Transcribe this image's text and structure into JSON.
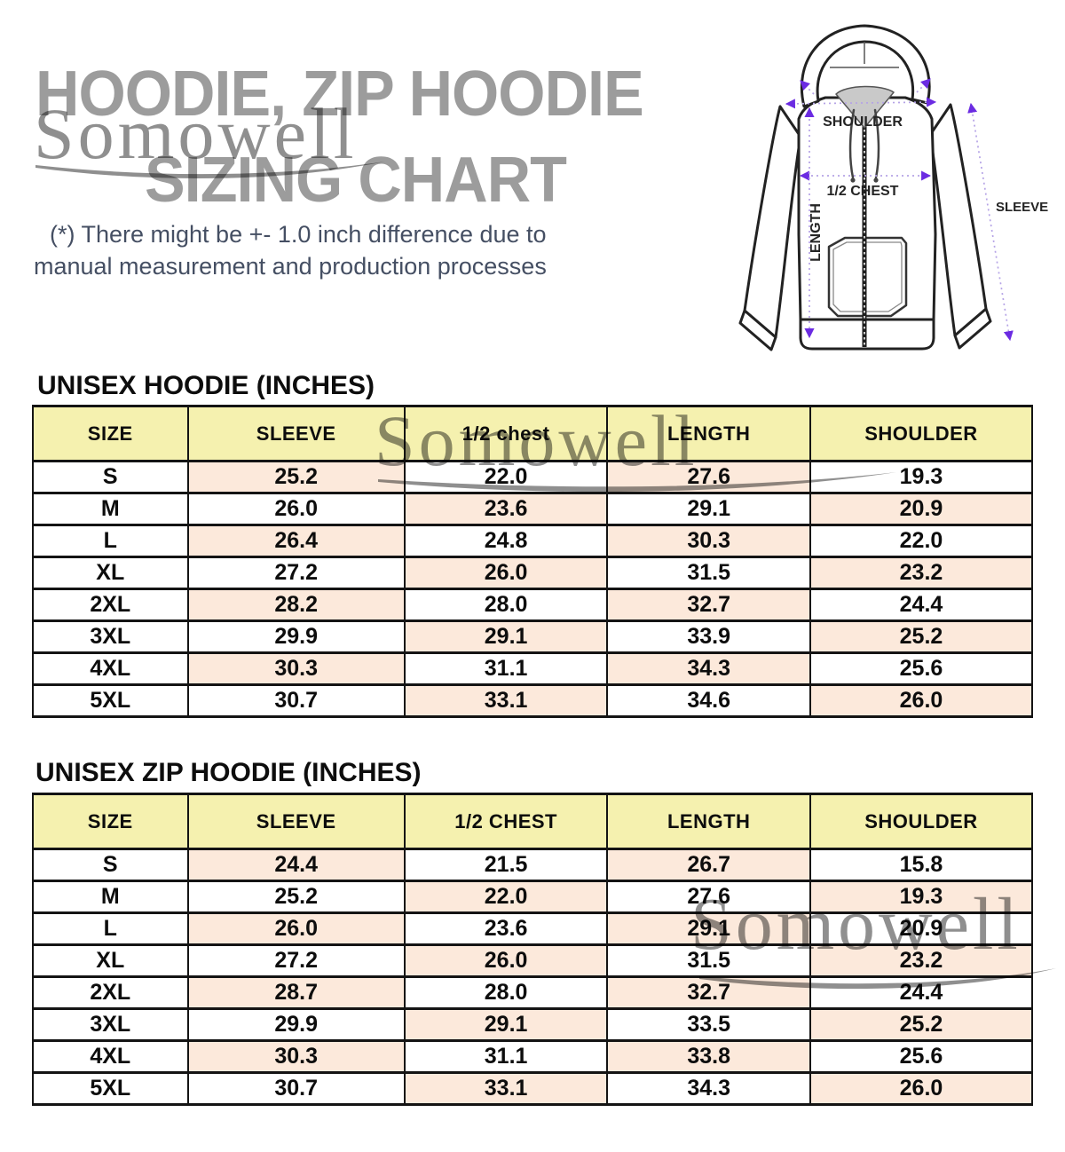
{
  "page": {
    "title_line1": "HOODIE, ZIP HOODIE",
    "title_line2": "SIZING CHART",
    "watermark_text": "Somowell",
    "disclaimer_line1": "(*) There might be +- 1.0 inch difference due to",
    "disclaimer_line2": "manual measurement and production processes"
  },
  "diagram": {
    "labels": {
      "shoulder": "SHOULDER",
      "half_chest": "1/2 CHEST",
      "length": "LENGTH",
      "sleeve": "SLEEVE"
    }
  },
  "colors": {
    "title_gray": "#9c9c9c",
    "watermark_gray": "#8f8f8f",
    "disclaimer_navy": "#454f63",
    "header_yellow": "#f5f1af",
    "cell_peach": "#fce9db",
    "border_black": "#141414",
    "arrow_purple": "#6b2be2",
    "arrow_light_purple": "#b5a3e6"
  },
  "tables": [
    {
      "heading": "UNISEX HOODIE (INCHES)",
      "columns": [
        "SIZE",
        "SLEEVE",
        "1/2 chest",
        "LENGTH",
        "SHOULDER"
      ],
      "rows": [
        [
          "S",
          "25.2",
          "22.0",
          "27.6",
          "19.3"
        ],
        [
          "M",
          "26.0",
          "23.6",
          "29.1",
          "20.9"
        ],
        [
          "L",
          "26.4",
          "24.8",
          "30.3",
          "22.0"
        ],
        [
          "XL",
          "27.2",
          "26.0",
          "31.5",
          "23.2"
        ],
        [
          "2XL",
          "28.2",
          "28.0",
          "32.7",
          "24.4"
        ],
        [
          "3XL",
          "29.9",
          "29.1",
          "33.9",
          "25.2"
        ],
        [
          "4XL",
          "30.3",
          "31.1",
          "34.3",
          "25.6"
        ],
        [
          "5XL",
          "30.7",
          "33.1",
          "34.6",
          "26.0"
        ]
      ]
    },
    {
      "heading": "UNISEX ZIP HOODIE (INCHES)",
      "columns": [
        "SIZE",
        "SLEEVE",
        "1/2 CHEST",
        "LENGTH",
        "SHOULDER"
      ],
      "rows": [
        [
          "S",
          "24.4",
          "21.5",
          "26.7",
          "15.8"
        ],
        [
          "M",
          "25.2",
          "22.0",
          "27.6",
          "19.3"
        ],
        [
          "L",
          "26.0",
          "23.6",
          "29.1",
          "20.9"
        ],
        [
          "XL",
          "27.2",
          "26.0",
          "31.5",
          "23.2"
        ],
        [
          "2XL",
          "28.7",
          "28.0",
          "32.7",
          "24.4"
        ],
        [
          "3XL",
          "29.9",
          "29.1",
          "33.5",
          "25.2"
        ],
        [
          "4XL",
          "30.3",
          "31.1",
          "33.8",
          "25.6"
        ],
        [
          "5XL",
          "30.7",
          "33.1",
          "34.3",
          "26.0"
        ]
      ]
    }
  ]
}
